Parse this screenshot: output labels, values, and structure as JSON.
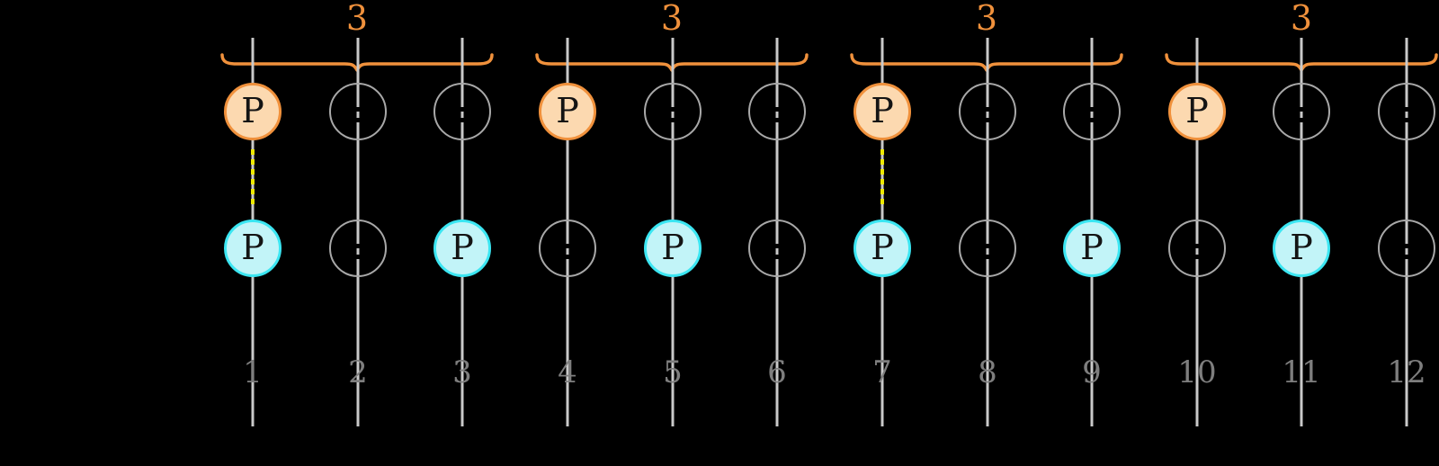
{
  "diagram": {
    "kind": "polyrhythm-pulse-grid",
    "tuplet_groups": [
      {
        "tuplet_label": "3"
      },
      {
        "tuplet_label": "3"
      },
      {
        "tuplet_label": "3"
      },
      {
        "tuplet_label": "3"
      }
    ],
    "beats": [
      {
        "number": "1",
        "top": {
          "state": "pulse",
          "label": "P"
        },
        "bottom": {
          "state": "pulse",
          "label": "P"
        },
        "connector": true
      },
      {
        "number": "2",
        "top": {
          "state": "empty",
          "label": ""
        },
        "bottom": {
          "state": "empty",
          "label": ""
        },
        "connector": false
      },
      {
        "number": "3",
        "top": {
          "state": "empty",
          "label": ""
        },
        "bottom": {
          "state": "pulse",
          "label": "P"
        },
        "connector": false
      },
      {
        "number": "4",
        "top": {
          "state": "pulse",
          "label": "P"
        },
        "bottom": {
          "state": "empty",
          "label": ""
        },
        "connector": false
      },
      {
        "number": "5",
        "top": {
          "state": "empty",
          "label": ""
        },
        "bottom": {
          "state": "pulse",
          "label": "P"
        },
        "connector": false
      },
      {
        "number": "6",
        "top": {
          "state": "empty",
          "label": ""
        },
        "bottom": {
          "state": "empty",
          "label": ""
        },
        "connector": false
      },
      {
        "number": "7",
        "top": {
          "state": "pulse",
          "label": "P"
        },
        "bottom": {
          "state": "pulse",
          "label": "P"
        },
        "connector": true
      },
      {
        "number": "8",
        "top": {
          "state": "empty",
          "label": ""
        },
        "bottom": {
          "state": "empty",
          "label": ""
        },
        "connector": false
      },
      {
        "number": "9",
        "top": {
          "state": "empty",
          "label": ""
        },
        "bottom": {
          "state": "pulse",
          "label": "P"
        },
        "connector": false
      },
      {
        "number": "10",
        "top": {
          "state": "pulse",
          "label": "P"
        },
        "bottom": {
          "state": "empty",
          "label": ""
        },
        "connector": false
      },
      {
        "number": "11",
        "top": {
          "state": "empty",
          "label": ""
        },
        "bottom": {
          "state": "pulse",
          "label": "P"
        },
        "connector": false
      },
      {
        "number": "12",
        "top": {
          "state": "empty",
          "label": ""
        },
        "bottom": {
          "state": "empty",
          "label": ""
        },
        "connector": false
      }
    ],
    "colors": {
      "background": "#000000",
      "line_gray": "#C9C9C9",
      "circle_outline": "#A8A8A8",
      "number_gray": "#7E7E7E",
      "tuplet_orange": "#F0913C",
      "pulse_top_fill": "#FCD9B0",
      "pulse_top_stroke": "#F0913C",
      "pulse_bottom_fill": "#C2F4F8",
      "pulse_bottom_stroke": "#3BE6F2",
      "connector_yellow": "#EDE800",
      "pulse_text": "#141414"
    }
  }
}
